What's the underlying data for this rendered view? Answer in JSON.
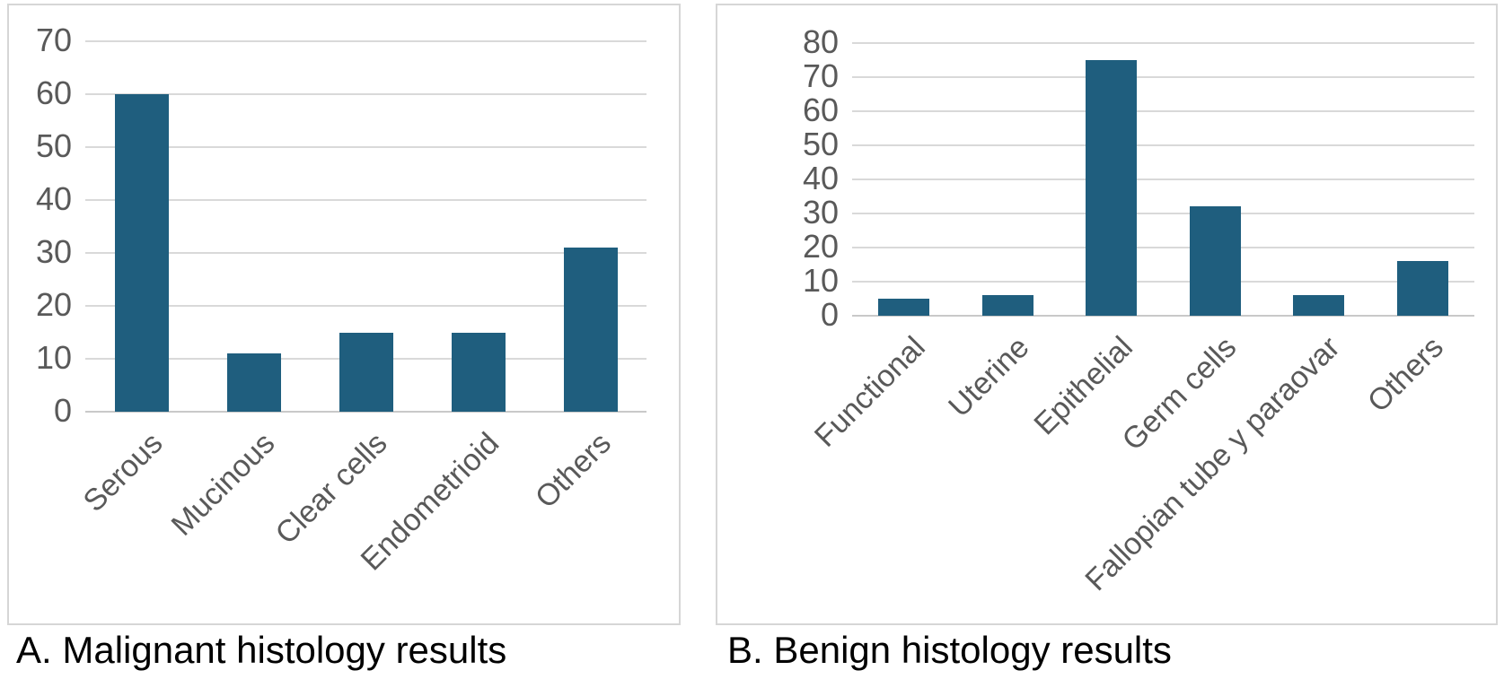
{
  "figure": {
    "panel_count": 2,
    "background": "#ffffff",
    "panel_border_color": "#d6d6d6"
  },
  "chart_data": [
    {
      "type": "bar",
      "panel_label": "A",
      "caption": "A. Malignant histology results",
      "categories": [
        "Serous",
        "Mucinous",
        "Clear cells",
        "Endometrioid",
        "Others"
      ],
      "values": [
        60,
        11,
        15,
        15,
        31
      ],
      "ylim": [
        0,
        70
      ],
      "yticks": [
        0,
        10,
        20,
        30,
        40,
        50,
        60,
        70
      ],
      "xlabel": "",
      "ylabel": "",
      "grid": true,
      "legend": false,
      "x_tick_rotation_deg": 45,
      "bar_color": "#1f5e7e",
      "gridline_color": "#d9d9d9",
      "tick_label_color": "#595959"
    },
    {
      "type": "bar",
      "panel_label": "B",
      "caption": "B. Benign histology results",
      "categories": [
        "Functional",
        "Uterine",
        "Epithelial",
        "Germ cells",
        "Fallopian tube y paraovar",
        "Others"
      ],
      "values": [
        5,
        6,
        75,
        32,
        6,
        16
      ],
      "ylim": [
        0,
        80
      ],
      "yticks": [
        0,
        10,
        20,
        30,
        40,
        50,
        60,
        70,
        80
      ],
      "xlabel": "",
      "ylabel": "",
      "grid": true,
      "legend": false,
      "x_tick_rotation_deg": 45,
      "bar_color": "#1f5e7e",
      "gridline_color": "#d9d9d9",
      "tick_label_color": "#595959"
    }
  ]
}
